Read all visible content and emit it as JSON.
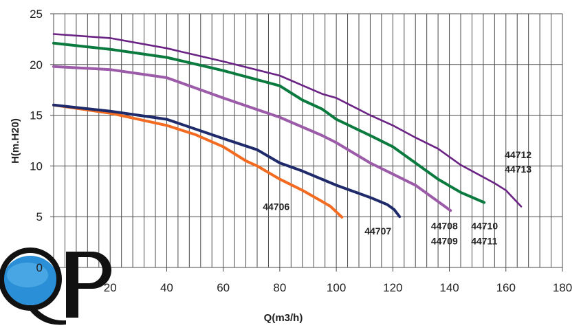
{
  "chart_data": {
    "type": "line",
    "title": "",
    "xlabel": "Q(m3/h)",
    "ylabel": "H(m.H20)",
    "xlim": [
      0,
      180
    ],
    "ylim": [
      0,
      25
    ],
    "x_ticks": [
      20,
      40,
      60,
      80,
      100,
      120,
      140,
      160,
      180
    ],
    "y_ticks": [
      0,
      5,
      10,
      15,
      20,
      25
    ],
    "x_minor_grid_step": 4,
    "grid": true,
    "legend": "none",
    "series": [
      {
        "name": "44706",
        "color": "#f26b21",
        "points": [
          [
            0,
            16
          ],
          [
            20,
            15.2
          ],
          [
            40,
            14.0
          ],
          [
            50,
            13.1
          ],
          [
            60,
            11.9
          ],
          [
            68,
            10.5
          ],
          [
            72,
            10.0
          ],
          [
            80,
            8.7
          ],
          [
            88,
            7.6
          ],
          [
            95,
            6.5
          ],
          [
            98,
            6.0
          ],
          [
            102,
            4.95
          ]
        ]
      },
      {
        "name": "44707",
        "color": "#1f2a6b",
        "points": [
          [
            0,
            16
          ],
          [
            20,
            15.4
          ],
          [
            30,
            15.0
          ],
          [
            40,
            14.6
          ],
          [
            60,
            12.7
          ],
          [
            72,
            11.6
          ],
          [
            80,
            10.3
          ],
          [
            88,
            9.5
          ],
          [
            100,
            8.1
          ],
          [
            112,
            6.9
          ],
          [
            118,
            6.2
          ],
          [
            120.5,
            5.7
          ],
          [
            122.4,
            5.0
          ]
        ]
      },
      {
        "name": "44708 / 44709",
        "color": "#9b5ba8",
        "points": [
          [
            0,
            19.8
          ],
          [
            20,
            19.5
          ],
          [
            40,
            18.7
          ],
          [
            60,
            16.7
          ],
          [
            80,
            14.8
          ],
          [
            95,
            13.0
          ],
          [
            100,
            12.3
          ],
          [
            112,
            10.3
          ],
          [
            120,
            9.2
          ],
          [
            128,
            8.1
          ],
          [
            136,
            6.5
          ],
          [
            140.4,
            5.6
          ]
        ]
      },
      {
        "name": "44710 / 44711",
        "color": "#0b7a3e",
        "points": [
          [
            0,
            22.1
          ],
          [
            20,
            21.5
          ],
          [
            40,
            20.7
          ],
          [
            60,
            19.4
          ],
          [
            80,
            17.9
          ],
          [
            88,
            16.5
          ],
          [
            95,
            15.6
          ],
          [
            100,
            14.6
          ],
          [
            112,
            13.0
          ],
          [
            120,
            11.9
          ],
          [
            128,
            10.3
          ],
          [
            136,
            8.7
          ],
          [
            144,
            7.4
          ],
          [
            152.3,
            6.4
          ]
        ]
      },
      {
        "name": "44712 / 44713",
        "color": "#6a2385",
        "points": [
          [
            0,
            23.0
          ],
          [
            20,
            22.6
          ],
          [
            40,
            21.6
          ],
          [
            60,
            20.3
          ],
          [
            80,
            18.9
          ],
          [
            95,
            17.1
          ],
          [
            100,
            16.7
          ],
          [
            112,
            15.0
          ],
          [
            120,
            14.0
          ],
          [
            128,
            12.8
          ],
          [
            136,
            11.7
          ],
          [
            144,
            10.1
          ],
          [
            152,
            8.9
          ],
          [
            156,
            8.3
          ],
          [
            160,
            7.6
          ],
          [
            165.4,
            6.0
          ]
        ]
      }
    ],
    "annotations": [
      {
        "text": "44706",
        "q": 74,
        "h": 6.0
      },
      {
        "text": "44707",
        "q": 110,
        "h": 3.6
      },
      {
        "text": "44708",
        "q": 133.5,
        "h": 4.1
      },
      {
        "text": "44709",
        "q": 133.5,
        "h": 2.6
      },
      {
        "text": "44710",
        "q": 147.7,
        "h": 4.1
      },
      {
        "text": "44711",
        "q": 147.7,
        "h": 2.6
      },
      {
        "text": "44712",
        "q": 159.6,
        "h": 11.1
      },
      {
        "text": "44713",
        "q": 159.6,
        "h": 9.7
      }
    ]
  },
  "logo": {
    "text": "QP",
    "water_color": "#2a8fd6"
  }
}
